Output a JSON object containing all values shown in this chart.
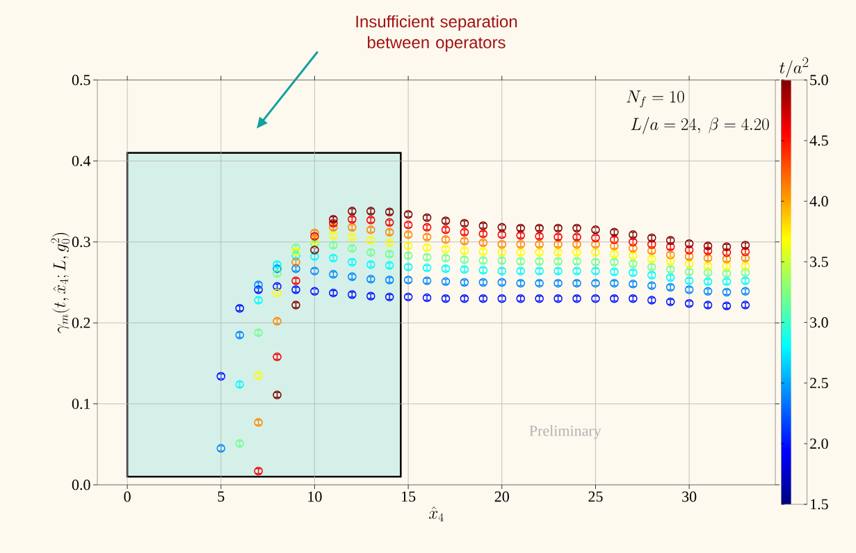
{
  "chart_data": {
    "type": "scatter",
    "xlabel": "\\hat{x}_4",
    "ylabel": "\\gamma_m\\bigl(t, \\hat{x}_4; L, g_0^2\\bigr)",
    "clabel": "t/a^2",
    "xlim": [
      -1.6,
      34.6
    ],
    "xticks": [
      0,
      5,
      10,
      15,
      20,
      25,
      30
    ],
    "ylim": [
      0,
      0.5
    ],
    "yticks": [
      {
        "value": 0,
        "label": "0.0"
      },
      {
        "value": 0.1,
        "label": "0.1"
      },
      {
        "value": 0.2,
        "label": "0.2"
      },
      {
        "value": 0.3,
        "label": "0.3"
      },
      {
        "value": 0.4,
        "label": "0.4"
      },
      {
        "value": 0.5,
        "label": "0.5"
      }
    ],
    "clim": [
      1.5,
      5.0
    ],
    "cticks": [
      {
        "value": 1.5,
        "label": "1.5"
      },
      {
        "value": 2.0,
        "label": "2.0"
      },
      {
        "value": 2.5,
        "label": "2.5"
      },
      {
        "value": 3.0,
        "label": "3.0"
      },
      {
        "value": 3.5,
        "label": "3.5"
      },
      {
        "value": 4.0,
        "label": "4.0"
      },
      {
        "value": 4.5,
        "label": "4.5"
      },
      {
        "value": 5.0,
        "label": "5.0"
      }
    ],
    "grid": true,
    "marker": "circle",
    "bands": [
      {
        "axis": "x",
        "from": 0,
        "to": 14.6,
        "color": "#d5f0e8"
      }
    ],
    "annotations": [
      "Insufficient separation between operators",
      "Preliminary",
      "N_f = 10",
      "L/a = 24,\\ \\beta = 4.20"
    ],
    "series": [
      {
        "x": [
          5,
          6,
          7,
          8,
          9,
          10,
          11,
          12,
          13,
          14,
          15,
          16,
          17,
          18,
          19,
          20,
          21,
          22,
          23,
          24,
          25,
          26,
          27,
          28,
          29,
          30,
          31,
          32,
          33
        ],
        "values": [
          0.134,
          0.218,
          0.241,
          0.245,
          0.241,
          0.239,
          0.237,
          0.235,
          0.233,
          0.232,
          0.232,
          0.231,
          0.23,
          0.23,
          0.23,
          0.23,
          0.23,
          0.23,
          0.23,
          0.23,
          0.23,
          0.23,
          0.23,
          0.228,
          0.226,
          0.224,
          0.222,
          0.221,
          0.222
        ],
        "cvalues": [
          2.0,
          2.0,
          2.0,
          2.0,
          2.0,
          2.0,
          2.0,
          2.0,
          2.0,
          2.0,
          2.0,
          2.0,
          2.0,
          2.0,
          2.0,
          2.0,
          2.0,
          2.0,
          2.0,
          2.0,
          2.0,
          2.0,
          2.0,
          2.0,
          2.0,
          2.0,
          2.0,
          2.0,
          2.0
        ],
        "errors": [
          0.003,
          0.003,
          0.003,
          0.003,
          0.003,
          0.003,
          0.003,
          0.003,
          0.003,
          0.003,
          0.003,
          0.003,
          0.003,
          0.003,
          0.003,
          0.003,
          0.003,
          0.003,
          0.003,
          0.003,
          0.003,
          0.003,
          0.003,
          0.003,
          0.003,
          0.003,
          0.003,
          0.003,
          0.003
        ]
      },
      {
        "x": [
          5,
          6,
          7,
          8,
          9,
          10,
          11,
          12,
          13,
          14,
          15,
          16,
          17,
          18,
          19,
          20,
          21,
          22,
          23,
          24,
          25,
          26,
          27,
          28,
          29,
          30,
          31,
          32,
          33
        ],
        "values": [
          0.045,
          0.185,
          0.247,
          0.267,
          0.267,
          0.264,
          0.26,
          0.257,
          0.254,
          0.253,
          0.253,
          0.252,
          0.251,
          0.25,
          0.25,
          0.25,
          0.249,
          0.249,
          0.249,
          0.249,
          0.249,
          0.249,
          0.248,
          0.246,
          0.244,
          0.241,
          0.239,
          0.238,
          0.239
        ],
        "cvalues": [
          2.4,
          2.4,
          2.4,
          2.4,
          2.4,
          2.4,
          2.4,
          2.4,
          2.4,
          2.4,
          2.4,
          2.4,
          2.4,
          2.4,
          2.4,
          2.4,
          2.4,
          2.4,
          2.4,
          2.4,
          2.4,
          2.4,
          2.4,
          2.4,
          2.4,
          2.4,
          2.4,
          2.4,
          2.4
        ],
        "errors": [
          0.003,
          0.003,
          0.003,
          0.003,
          0.003,
          0.003,
          0.003,
          0.003,
          0.003,
          0.003,
          0.003,
          0.003,
          0.003,
          0.003,
          0.003,
          0.003,
          0.003,
          0.003,
          0.003,
          0.003,
          0.003,
          0.003,
          0.003,
          0.003,
          0.003,
          0.003,
          0.003,
          0.003,
          0.003
        ]
      },
      {
        "x": [
          6,
          7,
          8,
          9,
          10,
          11,
          12,
          13,
          14,
          15,
          16,
          17,
          18,
          19,
          20,
          21,
          22,
          23,
          24,
          25,
          26,
          27,
          28,
          29,
          30,
          31,
          32,
          33
        ],
        "values": [
          0.124,
          0.228,
          0.272,
          0.283,
          0.282,
          0.28,
          0.275,
          0.272,
          0.271,
          0.269,
          0.268,
          0.267,
          0.266,
          0.265,
          0.264,
          0.264,
          0.264,
          0.264,
          0.264,
          0.264,
          0.263,
          0.262,
          0.259,
          0.256,
          0.252,
          0.251,
          0.251,
          0.252
        ],
        "cvalues": [
          2.8,
          2.8,
          2.8,
          2.8,
          2.8,
          2.8,
          2.8,
          2.8,
          2.8,
          2.8,
          2.8,
          2.8,
          2.8,
          2.8,
          2.8,
          2.8,
          2.8,
          2.8,
          2.8,
          2.8,
          2.8,
          2.8,
          2.8,
          2.8,
          2.8,
          2.8,
          2.8,
          2.8
        ],
        "errors": [
          0.003,
          0.003,
          0.003,
          0.003,
          0.003,
          0.003,
          0.003,
          0.003,
          0.003,
          0.003,
          0.003,
          0.003,
          0.003,
          0.003,
          0.003,
          0.003,
          0.003,
          0.003,
          0.003,
          0.003,
          0.003,
          0.003,
          0.003,
          0.003,
          0.003,
          0.003,
          0.003,
          0.003
        ]
      },
      {
        "x": [
          6,
          7,
          8,
          9,
          10,
          11,
          12,
          13,
          14,
          15,
          16,
          17,
          18,
          19,
          20,
          21,
          22,
          23,
          24,
          25,
          26,
          27,
          28,
          29,
          30,
          31,
          32,
          33
        ],
        "values": [
          0.051,
          0.188,
          0.261,
          0.293,
          0.298,
          0.296,
          0.292,
          0.287,
          0.285,
          0.283,
          0.281,
          0.28,
          0.278,
          0.277,
          0.277,
          0.276,
          0.276,
          0.276,
          0.276,
          0.275,
          0.275,
          0.273,
          0.269,
          0.266,
          0.263,
          0.262,
          0.261,
          0.262
        ],
        "cvalues": [
          3.2,
          3.2,
          3.2,
          3.2,
          3.2,
          3.2,
          3.2,
          3.2,
          3.2,
          3.2,
          3.2,
          3.2,
          3.2,
          3.2,
          3.2,
          3.2,
          3.2,
          3.2,
          3.2,
          3.2,
          3.2,
          3.2,
          3.2,
          3.2,
          3.2,
          3.2,
          3.2,
          3.2
        ],
        "errors": [
          0.003,
          0.003,
          0.003,
          0.003,
          0.003,
          0.003,
          0.003,
          0.003,
          0.003,
          0.003,
          0.003,
          0.003,
          0.003,
          0.003,
          0.003,
          0.003,
          0.003,
          0.003,
          0.003,
          0.003,
          0.003,
          0.003,
          0.003,
          0.003,
          0.003,
          0.003,
          0.003,
          0.003
        ]
      },
      {
        "x": [
          7,
          8,
          9,
          10,
          11,
          12,
          13,
          14,
          15,
          16,
          17,
          18,
          19,
          20,
          21,
          22,
          23,
          24,
          25,
          26,
          27,
          28,
          29,
          30,
          31,
          32,
          33
        ],
        "values": [
          0.135,
          0.237,
          0.288,
          0.302,
          0.308,
          0.306,
          0.302,
          0.299,
          0.295,
          0.293,
          0.291,
          0.289,
          0.288,
          0.287,
          0.287,
          0.287,
          0.287,
          0.287,
          0.287,
          0.285,
          0.283,
          0.279,
          0.276,
          0.273,
          0.27,
          0.27,
          0.27
        ],
        "cvalues": [
          3.7,
          3.7,
          3.7,
          3.7,
          3.7,
          3.7,
          3.7,
          3.7,
          3.7,
          3.7,
          3.7,
          3.7,
          3.7,
          3.7,
          3.7,
          3.7,
          3.7,
          3.7,
          3.7,
          3.7,
          3.7,
          3.7,
          3.7,
          3.7,
          3.7,
          3.7,
          3.7
        ],
        "errors": [
          0.003,
          0.003,
          0.003,
          0.003,
          0.003,
          0.003,
          0.003,
          0.003,
          0.003,
          0.003,
          0.003,
          0.003,
          0.003,
          0.003,
          0.003,
          0.003,
          0.003,
          0.003,
          0.003,
          0.003,
          0.003,
          0.003,
          0.003,
          0.003,
          0.003,
          0.003,
          0.003
        ]
      },
      {
        "x": [
          7,
          8,
          9,
          10,
          11,
          12,
          13,
          14,
          15,
          16,
          17,
          18,
          19,
          20,
          21,
          22,
          23,
          24,
          25,
          26,
          27,
          28,
          29,
          30,
          31,
          32,
          33
        ],
        "values": [
          0.077,
          0.202,
          0.275,
          0.311,
          0.318,
          0.318,
          0.315,
          0.312,
          0.309,
          0.306,
          0.303,
          0.301,
          0.299,
          0.297,
          0.297,
          0.297,
          0.297,
          0.297,
          0.297,
          0.295,
          0.292,
          0.289,
          0.284,
          0.282,
          0.28,
          0.279,
          0.28
        ],
        "cvalues": [
          4.1,
          4.1,
          4.1,
          4.1,
          4.1,
          4.1,
          4.1,
          4.1,
          4.1,
          4.1,
          4.1,
          4.1,
          4.1,
          4.1,
          4.1,
          4.1,
          4.1,
          4.1,
          4.1,
          4.1,
          4.1,
          4.1,
          4.1,
          4.1,
          4.1,
          4.1,
          4.1
        ],
        "errors": [
          0.003,
          0.003,
          0.003,
          0.003,
          0.003,
          0.003,
          0.003,
          0.003,
          0.003,
          0.003,
          0.003,
          0.003,
          0.003,
          0.003,
          0.003,
          0.003,
          0.003,
          0.003,
          0.003,
          0.003,
          0.003,
          0.003,
          0.003,
          0.003,
          0.003,
          0.003,
          0.003
        ]
      },
      {
        "x": [
          7,
          8,
          9,
          10,
          11,
          12,
          13,
          14,
          15,
          16,
          17,
          18,
          19,
          20,
          21,
          22,
          23,
          24,
          25,
          26,
          27,
          28,
          29,
          30,
          31,
          32,
          33
        ],
        "values": [
          0.017,
          0.158,
          0.252,
          0.307,
          0.323,
          0.328,
          0.327,
          0.324,
          0.321,
          0.318,
          0.315,
          0.312,
          0.31,
          0.309,
          0.308,
          0.307,
          0.306,
          0.306,
          0.305,
          0.303,
          0.3,
          0.297,
          0.294,
          0.29,
          0.289,
          0.287,
          0.288
        ],
        "cvalues": [
          4.6,
          4.6,
          4.6,
          4.6,
          4.6,
          4.6,
          4.6,
          4.6,
          4.6,
          4.6,
          4.6,
          4.6,
          4.6,
          4.6,
          4.6,
          4.6,
          4.6,
          4.6,
          4.6,
          4.6,
          4.6,
          4.6,
          4.6,
          4.6,
          4.6,
          4.6,
          4.6
        ],
        "errors": [
          0.003,
          0.003,
          0.003,
          0.003,
          0.003,
          0.003,
          0.003,
          0.003,
          0.003,
          0.003,
          0.003,
          0.003,
          0.003,
          0.003,
          0.003,
          0.003,
          0.003,
          0.003,
          0.003,
          0.003,
          0.003,
          0.003,
          0.003,
          0.003,
          0.003,
          0.003,
          0.003
        ]
      },
      {
        "x": [
          8,
          9,
          10,
          11,
          12,
          13,
          14,
          15,
          16,
          17,
          18,
          19,
          20,
          21,
          22,
          23,
          24,
          25,
          26,
          27,
          28,
          29,
          30,
          31,
          32,
          33
        ],
        "values": [
          0.111,
          0.222,
          0.29,
          0.328,
          0.338,
          0.338,
          0.337,
          0.334,
          0.33,
          0.326,
          0.323,
          0.32,
          0.318,
          0.317,
          0.317,
          0.317,
          0.317,
          0.315,
          0.312,
          0.309,
          0.305,
          0.302,
          0.298,
          0.295,
          0.294,
          0.296
        ],
        "cvalues": [
          5.0,
          5.0,
          5.0,
          5.0,
          5.0,
          5.0,
          5.0,
          5.0,
          5.0,
          5.0,
          5.0,
          5.0,
          5.0,
          5.0,
          5.0,
          5.0,
          5.0,
          5.0,
          5.0,
          5.0,
          5.0,
          5.0,
          5.0,
          5.0,
          5.0,
          5.0
        ],
        "errors": [
          0.003,
          0.003,
          0.003,
          0.003,
          0.003,
          0.003,
          0.003,
          0.003,
          0.003,
          0.003,
          0.003,
          0.003,
          0.003,
          0.003,
          0.003,
          0.003,
          0.003,
          0.003,
          0.003,
          0.003,
          0.003,
          0.003,
          0.003,
          0.003,
          0.003,
          0.003
        ]
      }
    ]
  }
}
